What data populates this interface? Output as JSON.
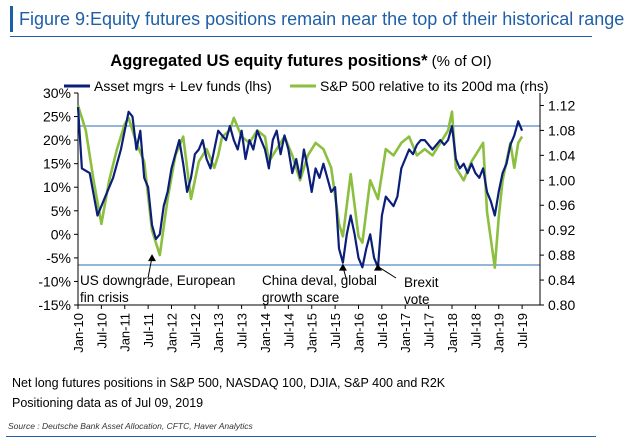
{
  "figure": {
    "title": "Figure 9:Equity futures positions remain near the top of their historical range",
    "note1": "Net long futures positions in S&P 500, NASDAQ 100, DJIA, S&P 400 and R2K",
    "note2": "Positioning data as of Jul 09, 2019",
    "source": "Source : Deutsche Bank Asset Allocation, CFTC, Haver Analytics"
  },
  "chart_data": {
    "type": "line",
    "title": "Aggregated US equity futures positions*",
    "title_suffix": "(% of OI)",
    "colors": {
      "navy": "#0b1f7a",
      "green": "#8cbf3f",
      "ref_line": "#2b6cb0"
    },
    "x_range": [
      "2010-01",
      "2019-08"
    ],
    "x_ticks": [
      "Jan-10",
      "Jul-10",
      "Jan-11",
      "Jul-11",
      "Jan-12",
      "Jul-12",
      "Jan-13",
      "Jul-13",
      "Jan-14",
      "Jul-14",
      "Jan-15",
      "Jul-15",
      "Jan-16",
      "Jul-16",
      "Jan-17",
      "Jul-17",
      "Jan-18",
      "Jul-18",
      "Jan-19",
      "Jul-19"
    ],
    "y_left": {
      "min": -15,
      "max": 30,
      "ticks": [
        "30%",
        "25%",
        "20%",
        "15%",
        "10%",
        "5%",
        "0%",
        "-5%",
        "-10%",
        "-15%"
      ]
    },
    "y_right": {
      "min": 0.8,
      "max": 1.14,
      "ticks": [
        "1.12",
        "1.08",
        "1.04",
        "1.00",
        "0.96",
        "0.92",
        "0.88",
        "0.84",
        "0.80"
      ]
    },
    "reference_lines": [
      {
        "axis": "left",
        "value": 23
      },
      {
        "axis": "left",
        "value": -6.5
      }
    ],
    "legend": {
      "position": "top",
      "labels": [
        "Asset mgrs + Lev funds (lhs)",
        "S&P 500 relative to its 200d ma (rhs)"
      ]
    },
    "series": [
      {
        "name": "Asset mgrs + Lev funds (lhs)",
        "axis": "left",
        "points": [
          [
            "2010-01",
            27
          ],
          [
            "2010-02",
            14
          ],
          [
            "2010-04",
            13
          ],
          [
            "2010-06",
            4
          ],
          [
            "2010-08",
            8
          ],
          [
            "2010-10",
            12
          ],
          [
            "2010-12",
            18
          ],
          [
            "2011-01",
            22
          ],
          [
            "2011-02",
            26
          ],
          [
            "2011-03",
            25
          ],
          [
            "2011-04",
            18
          ],
          [
            "2011-05",
            22
          ],
          [
            "2011-06",
            12
          ],
          [
            "2011-07",
            10
          ],
          [
            "2011-08",
            2
          ],
          [
            "2011-09",
            -1
          ],
          [
            "2011-10",
            0
          ],
          [
            "2011-11",
            6
          ],
          [
            "2011-12",
            9
          ],
          [
            "2012-01",
            14
          ],
          [
            "2012-02",
            17
          ],
          [
            "2012-03",
            20
          ],
          [
            "2012-04",
            15
          ],
          [
            "2012-05",
            9
          ],
          [
            "2012-06",
            12
          ],
          [
            "2012-07",
            17
          ],
          [
            "2012-08",
            18
          ],
          [
            "2012-09",
            20
          ],
          [
            "2012-10",
            16
          ],
          [
            "2012-11",
            14
          ],
          [
            "2012-12",
            18
          ],
          [
            "2013-01",
            22
          ],
          [
            "2013-02",
            21
          ],
          [
            "2013-03",
            20
          ],
          [
            "2013-04",
            23
          ],
          [
            "2013-05",
            20
          ],
          [
            "2013-06",
            18
          ],
          [
            "2013-07",
            22
          ],
          [
            "2013-08",
            16
          ],
          [
            "2013-09",
            20
          ],
          [
            "2013-10",
            18
          ],
          [
            "2013-11",
            22
          ],
          [
            "2013-12",
            20
          ],
          [
            "2014-01",
            18
          ],
          [
            "2014-02",
            14
          ],
          [
            "2014-03",
            20
          ],
          [
            "2014-04",
            22
          ],
          [
            "2014-05",
            17
          ],
          [
            "2014-06",
            21
          ],
          [
            "2014-07",
            18
          ],
          [
            "2014-08",
            13
          ],
          [
            "2014-09",
            16
          ],
          [
            "2014-10",
            12
          ],
          [
            "2014-11",
            18
          ],
          [
            "2014-12",
            14
          ],
          [
            "2015-01",
            9
          ],
          [
            "2015-02",
            14
          ],
          [
            "2015-03",
            12
          ],
          [
            "2015-04",
            15
          ],
          [
            "2015-05",
            12
          ],
          [
            "2015-06",
            9
          ],
          [
            "2015-07",
            10
          ],
          [
            "2015-08",
            -3
          ],
          [
            "2015-09",
            -6
          ],
          [
            "2015-10",
            0
          ],
          [
            "2015-11",
            4
          ],
          [
            "2015-12",
            0
          ],
          [
            "2016-01",
            -5
          ],
          [
            "2016-02",
            -7
          ],
          [
            "2016-03",
            -3
          ],
          [
            "2016-04",
            0
          ],
          [
            "2016-05",
            -5
          ],
          [
            "2016-06",
            -7
          ],
          [
            "2016-07",
            4
          ],
          [
            "2016-08",
            8
          ],
          [
            "2016-09",
            7
          ],
          [
            "2016-10",
            6
          ],
          [
            "2016-11",
            8
          ],
          [
            "2016-12",
            14
          ],
          [
            "2017-01",
            16
          ],
          [
            "2017-02",
            18
          ],
          [
            "2017-03",
            17
          ],
          [
            "2017-04",
            19
          ],
          [
            "2017-05",
            20
          ],
          [
            "2017-06",
            20
          ],
          [
            "2017-07",
            19
          ],
          [
            "2017-08",
            18
          ],
          [
            "2017-09",
            19
          ],
          [
            "2017-10",
            20
          ],
          [
            "2017-11",
            19
          ],
          [
            "2017-12",
            20
          ],
          [
            "2018-01",
            23
          ],
          [
            "2018-02",
            16
          ],
          [
            "2018-03",
            14
          ],
          [
            "2018-04",
            15
          ],
          [
            "2018-05",
            13
          ],
          [
            "2018-06",
            15
          ],
          [
            "2018-07",
            13
          ],
          [
            "2018-08",
            12
          ],
          [
            "2018-09",
            14
          ],
          [
            "2018-10",
            9
          ],
          [
            "2018-11",
            7
          ],
          [
            "2018-12",
            4
          ],
          [
            "2019-01",
            9
          ],
          [
            "2019-02",
            13
          ],
          [
            "2019-03",
            15
          ],
          [
            "2019-04",
            19
          ],
          [
            "2019-05",
            21
          ],
          [
            "2019-06",
            24
          ],
          [
            "2019-07",
            22
          ]
        ]
      },
      {
        "name": "S&P 500 relative to its 200d ma (rhs)",
        "axis": "right",
        "points": [
          [
            "2010-01",
            1.12
          ],
          [
            "2010-03",
            1.08
          ],
          [
            "2010-05",
            1.0
          ],
          [
            "2010-07",
            0.93
          ],
          [
            "2010-09",
            1.0
          ],
          [
            "2010-11",
            1.05
          ],
          [
            "2011-01",
            1.09
          ],
          [
            "2011-02",
            1.1
          ],
          [
            "2011-04",
            1.06
          ],
          [
            "2011-06",
            1.03
          ],
          [
            "2011-08",
            0.92
          ],
          [
            "2011-10",
            0.88
          ],
          [
            "2011-12",
            0.97
          ],
          [
            "2012-02",
            1.04
          ],
          [
            "2012-04",
            1.07
          ],
          [
            "2012-06",
            0.97
          ],
          [
            "2012-08",
            1.03
          ],
          [
            "2012-10",
            1.05
          ],
          [
            "2012-12",
            1.02
          ],
          [
            "2013-01",
            1.04
          ],
          [
            "2013-02",
            1.07
          ],
          [
            "2013-04",
            1.08
          ],
          [
            "2013-05",
            1.1
          ],
          [
            "2013-07",
            1.07
          ],
          [
            "2013-09",
            1.06
          ],
          [
            "2013-11",
            1.08
          ],
          [
            "2014-01",
            1.07
          ],
          [
            "2014-02",
            1.03
          ],
          [
            "2014-04",
            1.05
          ],
          [
            "2014-06",
            1.07
          ],
          [
            "2014-08",
            1.04
          ],
          [
            "2014-10",
            1.0
          ],
          [
            "2014-12",
            1.04
          ],
          [
            "2015-02",
            1.06
          ],
          [
            "2015-04",
            1.05
          ],
          [
            "2015-06",
            1.02
          ],
          [
            "2015-08",
            0.93
          ],
          [
            "2015-09",
            0.91
          ],
          [
            "2015-11",
            1.01
          ],
          [
            "2016-01",
            0.91
          ],
          [
            "2016-02",
            0.9
          ],
          [
            "2016-04",
            1.0
          ],
          [
            "2016-06",
            0.97
          ],
          [
            "2016-08",
            1.05
          ],
          [
            "2016-10",
            1.04
          ],
          [
            "2016-12",
            1.06
          ],
          [
            "2017-02",
            1.07
          ],
          [
            "2017-04",
            1.04
          ],
          [
            "2017-06",
            1.05
          ],
          [
            "2017-08",
            1.04
          ],
          [
            "2017-10",
            1.06
          ],
          [
            "2017-12",
            1.08
          ],
          [
            "2018-01",
            1.11
          ],
          [
            "2018-02",
            1.02
          ],
          [
            "2018-04",
            1.0
          ],
          [
            "2018-06",
            1.03
          ],
          [
            "2018-08",
            1.05
          ],
          [
            "2018-09",
            1.06
          ],
          [
            "2018-10",
            0.95
          ],
          [
            "2018-12",
            0.86
          ],
          [
            "2019-01",
            0.94
          ],
          [
            "2019-02",
            1.0
          ],
          [
            "2019-04",
            1.06
          ],
          [
            "2019-05",
            1.02
          ],
          [
            "2019-06",
            1.06
          ],
          [
            "2019-07",
            1.07
          ]
        ]
      }
    ],
    "annotations": [
      {
        "text": [
          "US downgrade, European",
          "fin crisis"
        ],
        "date": "2011-08",
        "value": -4
      },
      {
        "text": [
          "China deval, global",
          "growth scare"
        ],
        "date": "2015-09",
        "value": -6
      },
      {
        "text": [
          "Brexit",
          "vote"
        ],
        "date": "2016-06",
        "value": -6
      }
    ]
  }
}
